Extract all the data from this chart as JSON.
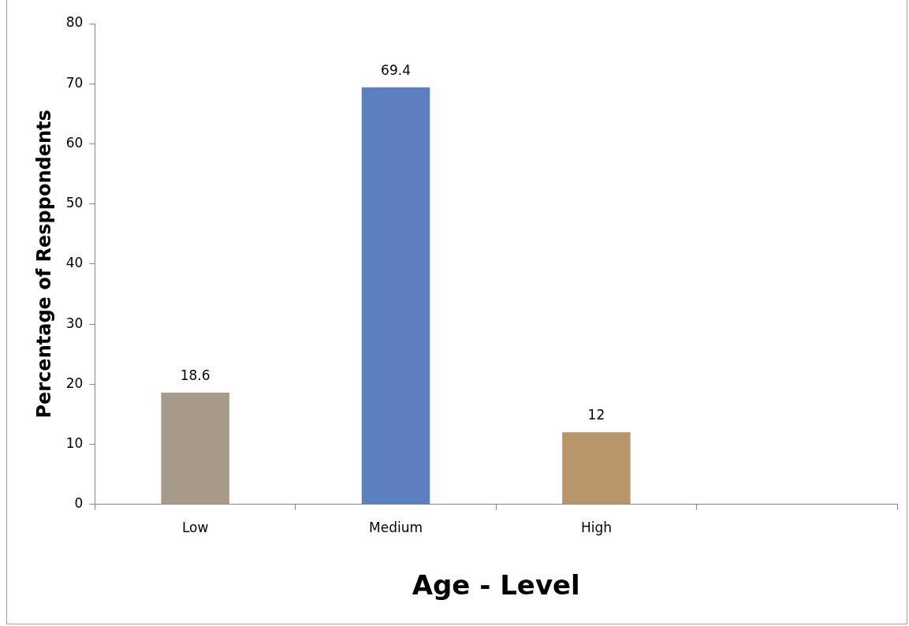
{
  "chart_data": {
    "type": "bar",
    "xlabel": "Age - Level",
    "ylabel": "Percentage of Resppondents",
    "categories": [
      "Low",
      "Medium",
      "High",
      null
    ],
    "values": [
      18.6,
      69.4,
      12,
      null
    ],
    "colors": [
      "#a89a8b",
      "#5b7fbf",
      "#b8956a",
      "#888888"
    ],
    "ylim": [
      0,
      80
    ],
    "yticks": [
      0,
      10,
      20,
      30,
      40,
      50,
      60,
      70,
      80
    ],
    "data_labels": true
  }
}
